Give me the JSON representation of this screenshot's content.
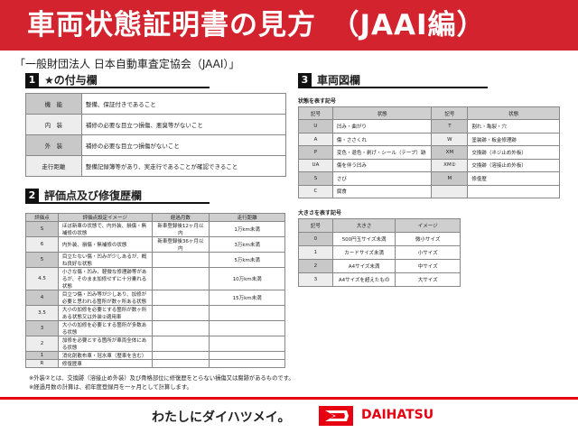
{
  "header": {
    "title": "車両状態証明書の見方　（JAAI編）"
  },
  "subtitle": "「一般財団法人 日本自動車査定協会（JAAI）」",
  "section1": {
    "num": "1",
    "title": "★の付与欄",
    "rows": [
      [
        "機　能",
        "整備、保証付きであること"
      ],
      [
        "内　装",
        "補修の必要な目立つ損傷、悪臭等がないこと"
      ],
      [
        "外　装",
        "補修の必要な目立つ損傷がないこと"
      ],
      [
        "走行距離",
        "整備記録簿等があり、実走行であることが確認できること"
      ]
    ]
  },
  "section2": {
    "num": "2",
    "title": "評価点及び修復歴欄",
    "headers": [
      "評価点",
      "評価点設定イメージ",
      "経過月数",
      "走行距離"
    ],
    "rows": [
      [
        "S",
        "ほぼ新車の状態で、内外装、損傷・無補修の状態",
        "新車登録後12ヶ月以内",
        "1万km未満"
      ],
      [
        "6",
        "内外装、損傷・無補修の状態",
        "新車登録後36ヶ月以内",
        "3万km未満"
      ],
      [
        "5",
        "目立たない傷・凹みが少しあるが、概ね良好な状態",
        "",
        "5万km未満"
      ],
      [
        "4.5",
        "小さな傷・凹み、軽微な修理跡等があるが、そのまま加修せずに十分乗れる状態",
        "",
        "10万km未満"
      ],
      [
        "4",
        "目立つ傷・凹み等が少しあり、加修が必要と思われる箇所が数ヶ所ある状態",
        "",
        "15万km未満"
      ],
      [
        "3.5",
        "大小の加修を必要とする箇所が数ヶ所ある状態又は外装②適用車",
        "",
        ""
      ],
      [
        "3",
        "大小の加修を必要とする箇所が多数ある状態",
        "",
        ""
      ],
      [
        "2",
        "加修を必要とする箇所が車両全体にある状態",
        "",
        ""
      ],
      [
        "1",
        "消化剤散布車・冠水車（歴車を含む）",
        "",
        ""
      ],
      [
        "R",
        "修復歴車",
        "",
        ""
      ]
    ]
  },
  "notes": [
    "※外装②とは、交換跡（溶接止め外装）及び骨格部位に修復歴をとらない損傷又は腐跡があるものです。",
    "※経過月数の計算は、初年度登録月を一ヶ月として計算します。"
  ],
  "section3": {
    "num": "3",
    "title": "車両図欄",
    "state_caption": "状態を表す記号",
    "state_headers": [
      "記号",
      "状態",
      "記号",
      "状態"
    ],
    "state_rows": [
      [
        "U",
        "凹み・曲がり",
        "T",
        "割れ・亀裂・穴"
      ],
      [
        "A",
        "傷・ささくれ",
        "W",
        "塗装跡・板金修理跡"
      ],
      [
        "P",
        "変色・退色・剥げ・シール（テープ）跡",
        "XM",
        "交換跡（ネジ止め外板）"
      ],
      [
        "UA",
        "傷を伴う凹み",
        "XM②",
        "交換跡（溶接止め外板）"
      ],
      [
        "S",
        "さび",
        "M",
        "修復歴"
      ],
      [
        "C",
        "腐食",
        "",
        ""
      ]
    ],
    "size_caption": "大きさを表す記号",
    "size_headers": [
      "記号",
      "大きさ",
      "イメージ"
    ],
    "size_rows": [
      [
        "0",
        "500円玉サイズ未満",
        "微小サイズ"
      ],
      [
        "1",
        "カードサイズ未満",
        "小サイズ"
      ],
      [
        "2",
        "A4サイズ未満",
        "中サイズ"
      ],
      [
        "3",
        "A4サイズを超えたもの",
        "大サイズ"
      ]
    ]
  },
  "footer": {
    "slogan": "わたしにダイハツメイ。",
    "brand": "DAIHATSU",
    "brand_color": "#e60012"
  }
}
